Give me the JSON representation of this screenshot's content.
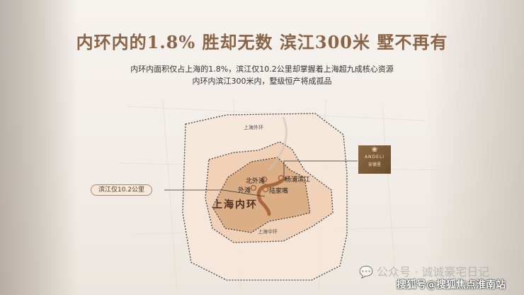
{
  "title": "内环内的1.8% 胜却无数 滨江300米 墅不再有",
  "subtitle_lines": [
    "内环内面积仅占上海的1.8%，滨江仅10.2公里却掌握着上海超九成核心资源",
    "内环内滨江300米内，墅级恒产将成孤品"
  ],
  "map": {
    "outer_ring": "上海外环",
    "middle_ring": "上海中环",
    "inner_ring": "上海内环",
    "places": [
      "北外滩",
      "杨浦滨江",
      "外滩",
      "陆家嘴"
    ],
    "callout": "滨江仅10.2公里"
  },
  "logo": {
    "en": "ANDELI",
    "cn": "安德里"
  },
  "watermark": {
    "wechat": "公众号 · 诚诚豪宅日记",
    "sohu": "搜狐号@搜狐焦点淮南站"
  },
  "colors": {
    "title": "#8a6446",
    "outer_fill": "#f7e6d8",
    "middle_fill": "#f1d2b8",
    "inner_fill": "#dcae86",
    "river": "#a8683e"
  }
}
